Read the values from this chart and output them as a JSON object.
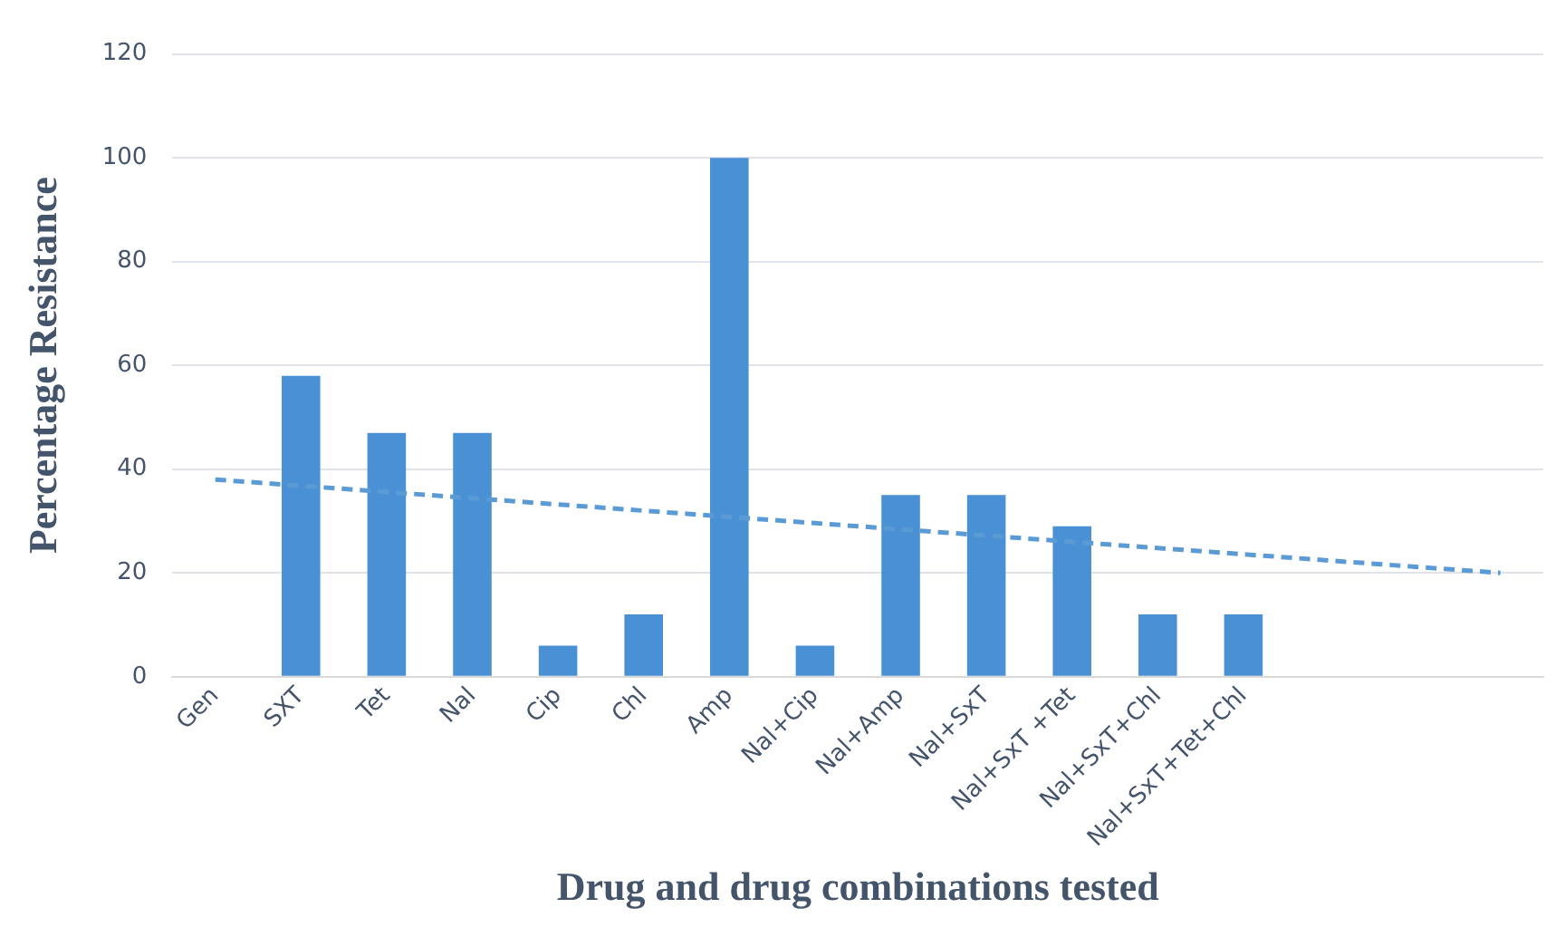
{
  "chart_data": {
    "type": "bar",
    "xlabel": "Drug and drug combinations tested",
    "ylabel": "Percentage Resistance",
    "categories": [
      "Gen",
      "SXT",
      "Tet",
      "Nal",
      "Cip",
      "Chl",
      "Amp",
      "Nal+Cip",
      "Nal+Amp",
      "Nal+SxT",
      "Nal+SxT +Tet",
      "Nal+SxT+Chl",
      "Nal+SxT+Tet+Chl",
      null,
      null,
      null
    ],
    "series": [
      {
        "color": "#4a90d4",
        "values": [
          0,
          58,
          47,
          47,
          6,
          12,
          100,
          6,
          35,
          35,
          29,
          12,
          12,
          null,
          null,
          null
        ]
      },
      {
        "type": "line",
        "color": "#5b9bd5",
        "line_style": "dashed",
        "marker": "none",
        "values": [
          38,
          36.8,
          35.6,
          34.4,
          33.2,
          32,
          30.8,
          29.6,
          28.4,
          27.2,
          26,
          24.8,
          23.6,
          22.4,
          21.2,
          20
        ]
      }
    ],
    "ylim": [
      0,
      120
    ],
    "yticks": [
      0,
      20,
      40,
      60,
      80,
      100,
      120
    ],
    "grid": "y",
    "legend": false
  }
}
